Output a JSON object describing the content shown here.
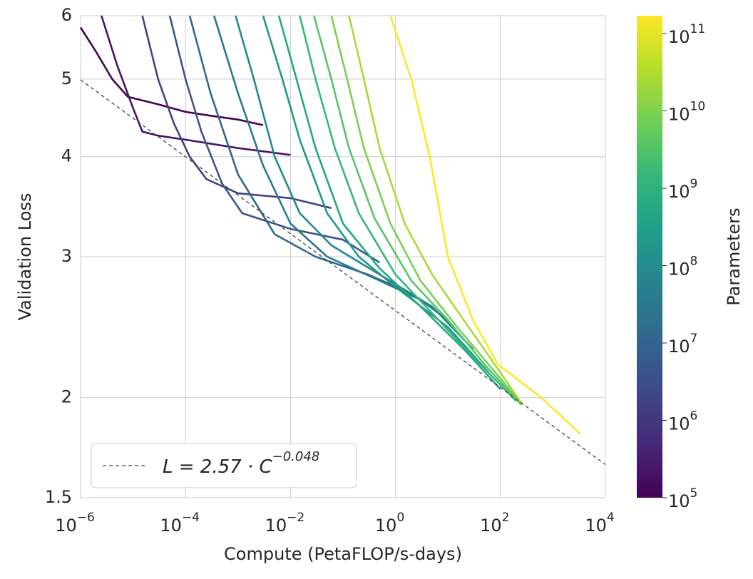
{
  "chart_data": {
    "type": "line",
    "x_label": "Compute (PetaFLOP/s-days)",
    "y_label": "Validation Loss",
    "xscale": "log",
    "yscale": "log",
    "grid": true,
    "legend": "lower left",
    "xlim": [
      1e-06,
      10000.0
    ],
    "xticks": [
      {
        "value": 1e-06,
        "label": "10",
        "exponent": "−6"
      },
      {
        "value": 0.0001,
        "label": "10",
        "exponent": "−4"
      },
      {
        "value": 0.01,
        "label": "10",
        "exponent": "−2"
      },
      {
        "value": 1,
        "label": "10",
        "exponent": "0"
      },
      {
        "value": 100,
        "label": "10",
        "exponent": "2"
      },
      {
        "value": 10000,
        "label": "10",
        "exponent": "4"
      }
    ],
    "ylim": [
      1.5,
      6
    ],
    "yticks": [
      1.5,
      2,
      3,
      4,
      5,
      6
    ],
    "series": [
      {
        "name": "L = 2.57 · C",
        "name_exponent": "−0.048",
        "color": "#444444",
        "style": "dashed",
        "x": [
          1e-06,
          10000.0
        ],
        "values": [
          4.99,
          1.65
        ]
      },
      {
        "color": "#440154",
        "style": "solid",
        "x": [
          1e-06,
          2e-06,
          4e-06,
          8e-06,
          3e-05,
          0.0001,
          0.0003,
          0.001,
          0.003
        ],
        "values": [
          5.8,
          5.4,
          5.0,
          4.75,
          4.65,
          4.55,
          4.5,
          4.45,
          4.38
        ]
      },
      {
        "color": "#471365",
        "style": "solid",
        "x": [
          2.5e-06,
          5e-06,
          1e-05,
          1.5e-05,
          3e-05,
          0.0001,
          0.001,
          0.01
        ],
        "values": [
          6,
          5.2,
          4.6,
          4.3,
          4.25,
          4.2,
          4.1,
          4.02
        ]
      },
      {
        "color": "#414487",
        "style": "solid",
        "x": [
          1.5e-05,
          3e-05,
          6e-05,
          0.00012,
          0.00025,
          0.001,
          0.01,
          0.06
        ],
        "values": [
          6,
          5,
          4.4,
          4.0,
          3.75,
          3.6,
          3.55,
          3.45
        ]
      },
      {
        "color": "#39568c",
        "style": "solid",
        "x": [
          5e-05,
          0.0001,
          0.0002,
          0.0005,
          0.0012,
          0.01,
          0.1,
          0.5
        ],
        "values": [
          6,
          5,
          4.3,
          3.7,
          3.4,
          3.25,
          3.15,
          2.95
        ]
      },
      {
        "color": "#31688e",
        "style": "solid",
        "x": [
          0.00012,
          0.0003,
          0.001,
          0.005,
          0.03,
          0.3,
          2
        ],
        "values": [
          6,
          4.8,
          3.8,
          3.2,
          3.0,
          2.85,
          2.7
        ]
      },
      {
        "color": "#2a788e",
        "style": "solid",
        "x": [
          0.00035,
          0.001,
          0.003,
          0.01,
          0.05,
          0.5,
          3,
          10
        ],
        "values": [
          6,
          4.8,
          3.9,
          3.3,
          3.0,
          2.8,
          2.65,
          2.5
        ]
      },
      {
        "color": "#23888e",
        "style": "solid",
        "x": [
          0.0009,
          0.002,
          0.005,
          0.015,
          0.06,
          0.5,
          5,
          30
        ],
        "values": [
          6,
          5,
          4,
          3.4,
          3.1,
          2.85,
          2.6,
          2.3
        ]
      },
      {
        "color": "#1f988b",
        "style": "solid",
        "x": [
          0.003,
          0.007,
          0.015,
          0.05,
          0.2,
          1,
          10,
          60
        ],
        "values": [
          6,
          5,
          4.2,
          3.4,
          3.0,
          2.75,
          2.45,
          2.15
        ]
      },
      {
        "color": "#22a884",
        "style": "solid",
        "x": [
          0.006,
          0.013,
          0.03,
          0.1,
          0.5,
          3,
          20,
          100
        ],
        "values": [
          6,
          5,
          4.1,
          3.3,
          2.9,
          2.6,
          2.3,
          2.05
        ]
      },
      {
        "color": "#35b779",
        "style": "solid",
        "x": [
          0.015,
          0.03,
          0.07,
          0.2,
          1,
          5,
          30,
          200
        ],
        "values": [
          6,
          5,
          4.1,
          3.4,
          2.85,
          2.55,
          2.25,
          1.98
        ]
      },
      {
        "color": "#54c568",
        "style": "solid",
        "x": [
          0.028,
          0.06,
          0.13,
          0.4,
          2,
          10,
          50,
          250
        ],
        "values": [
          6,
          5,
          4.1,
          3.35,
          2.8,
          2.5,
          2.2,
          1.96
        ]
      },
      {
        "color": "#7ad151",
        "style": "solid",
        "x": [
          0.06,
          0.12,
          0.25,
          0.8,
          3,
          15,
          80,
          250
        ],
        "values": [
          6,
          5,
          4.1,
          3.3,
          2.8,
          2.45,
          2.15,
          1.97
        ]
      },
      {
        "color": "#a5db36",
        "style": "solid",
        "x": [
          0.13,
          0.25,
          0.5,
          1.5,
          5,
          20,
          100,
          250
        ],
        "values": [
          6,
          5,
          4.1,
          3.3,
          2.85,
          2.5,
          2.15,
          1.97
        ]
      },
      {
        "color": "#fde725",
        "style": "solid",
        "x": [
          0.8,
          2,
          4.5,
          10,
          30,
          90,
          600,
          3400
        ],
        "values": [
          6,
          5,
          4,
          3,
          2.5,
          2.2,
          2,
          1.8
        ]
      }
    ],
    "colorbar": {
      "label": "Parameters",
      "scale": "log",
      "lim": [
        100000.0,
        170000000000.0
      ],
      "colors": [
        "#440154",
        "#482878",
        "#3e4989",
        "#31688e",
        "#26828e",
        "#1f9e89",
        "#35b779",
        "#6ece58",
        "#b5de2b",
        "#fde725"
      ],
      "ticks": [
        {
          "value": 100000.0,
          "label": "10",
          "exponent": "5"
        },
        {
          "value": 1000000.0,
          "label": "10",
          "exponent": "6"
        },
        {
          "value": 10000000.0,
          "label": "10",
          "exponent": "7"
        },
        {
          "value": 100000000.0,
          "label": "10",
          "exponent": "8"
        },
        {
          "value": 1000000000.0,
          "label": "10",
          "exponent": "9"
        },
        {
          "value": 10000000000.0,
          "label": "10",
          "exponent": "10"
        },
        {
          "value": 100000000000.0,
          "label": "10",
          "exponent": "11"
        }
      ]
    }
  }
}
